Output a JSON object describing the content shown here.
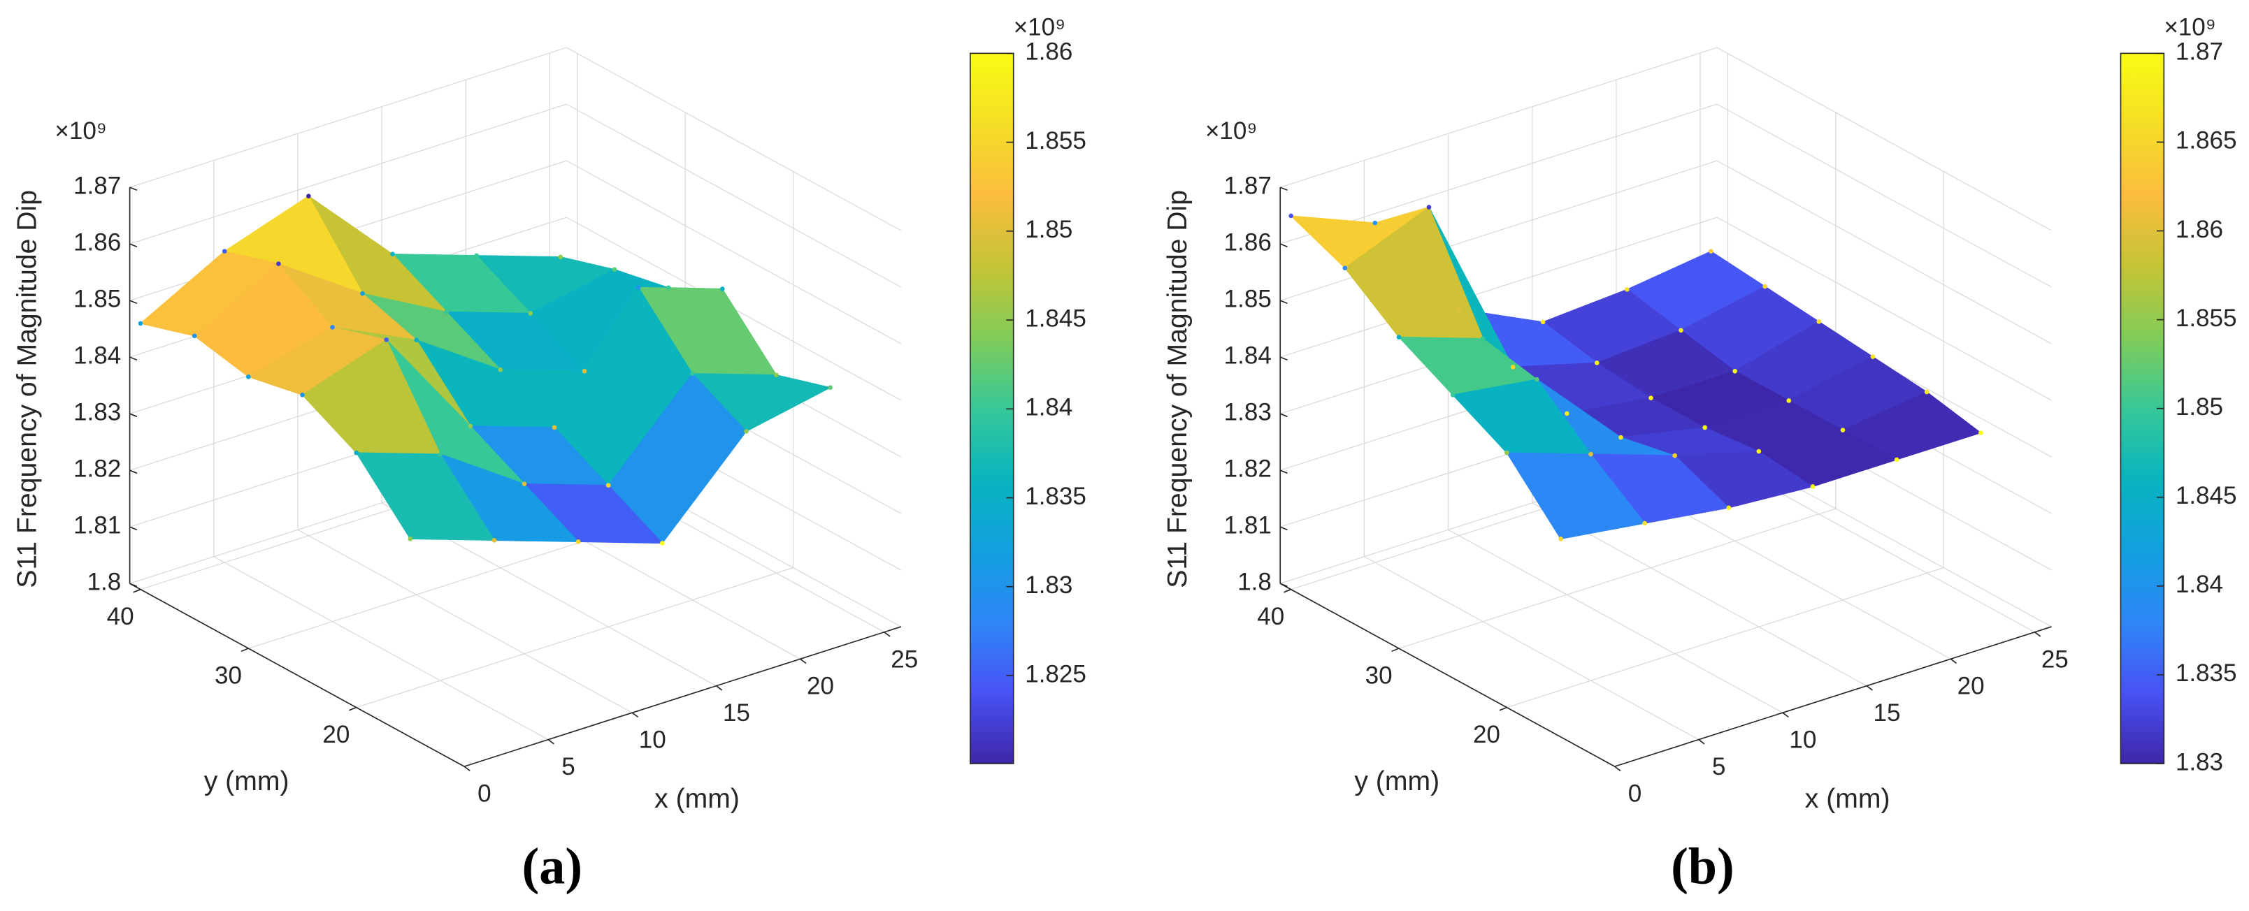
{
  "chart_data": [
    {
      "type": "surface",
      "panel_label": "(a)",
      "xlabel": "x (mm)",
      "ylabel": "y (mm)",
      "zlabel": "S11 Frequency of Magnitude Dip",
      "z_exponent": "×10⁹",
      "colormap": "parula",
      "grid": true,
      "x": [
        0,
        5,
        10,
        15,
        20,
        25
      ],
      "y": [
        15,
        20,
        25,
        30,
        35,
        40
      ],
      "z": [
        [
          1835000000,
          1830000000,
          1825000000,
          1820000000,
          1835000000,
          1838000000
        ],
        [
          1845000000,
          1840000000,
          1830000000,
          1825000000,
          1840000000,
          1835000000
        ],
        [
          1850000000,
          1855000000,
          1835000000,
          1830000000,
          1850000000,
          1845000000
        ],
        [
          1848000000,
          1852000000,
          1845000000,
          1835000000,
          1830000000,
          1840000000
        ],
        [
          1850000000,
          1858000000,
          1848000000,
          1840000000,
          1835000000,
          1838000000
        ],
        [
          1847000000,
          1855000000,
          1860000000,
          1845000000,
          1840000000,
          1835000000
        ]
      ],
      "xlim": [
        0,
        26
      ],
      "ylim": [
        10,
        41
      ],
      "zlim": [
        1800000000,
        1870000000
      ],
      "xticks": [
        0,
        5,
        10,
        15,
        20,
        25
      ],
      "yticks": [
        20,
        30,
        40
      ],
      "zticks": [
        {
          "value": 1800000000,
          "label": "1.8"
        },
        {
          "value": 1810000000,
          "label": "1.81"
        },
        {
          "value": 1820000000,
          "label": "1.82"
        },
        {
          "value": 1830000000,
          "label": "1.83"
        },
        {
          "value": 1840000000,
          "label": "1.84"
        },
        {
          "value": 1850000000,
          "label": "1.85"
        },
        {
          "value": 1860000000,
          "label": "1.86"
        },
        {
          "value": 1870000000,
          "label": "1.87"
        }
      ],
      "colorbar": {
        "lim": [
          1820050000,
          1860000000
        ],
        "exponent": "×10⁹",
        "ticks": [
          {
            "value": 1825000000,
            "label": "1.825"
          },
          {
            "value": 1830000000,
            "label": "1.83"
          },
          {
            "value": 1835000000,
            "label": "1.835"
          },
          {
            "value": 1840000000,
            "label": "1.84"
          },
          {
            "value": 1845000000,
            "label": "1.845"
          },
          {
            "value": 1850000000,
            "label": "1.85"
          },
          {
            "value": 1855000000,
            "label": "1.855"
          },
          {
            "value": 1860000000,
            "label": "1.86"
          }
        ]
      }
    },
    {
      "type": "surface",
      "panel_label": "(b)",
      "xlabel": "x (mm)",
      "ylabel": "y (mm)",
      "zlabel": "S11 Frequency of Magnitude Dip",
      "z_exponent": "×10⁹",
      "colormap": "parula",
      "grid": true,
      "x": [
        0,
        5,
        10,
        15,
        20,
        25
      ],
      "y": [
        15,
        20,
        25,
        30,
        35,
        40
      ],
      "z": [
        [
          1835000000,
          1833000000,
          1831000000,
          1830000000,
          1830000000,
          1830000000
        ],
        [
          1845000000,
          1840000000,
          1835000000,
          1831000000,
          1830000000,
          1832000000
        ],
        [
          1850000000,
          1848000000,
          1833000000,
          1830000000,
          1830000000,
          1833000000
        ],
        [
          1855000000,
          1850000000,
          1832000000,
          1830000000,
          1830000000,
          1834000000
        ],
        [
          1862000000,
          1868000000,
          1835000000,
          1831000000,
          1832000000,
          1835000000
        ],
        [
          1866000000,
          1860000000,
          1840000000,
          1833000000,
          1834000000,
          1836000000
        ]
      ],
      "xlim": [
        0,
        26
      ],
      "ylim": [
        10,
        41
      ],
      "zlim": [
        1800000000,
        1870000000
      ],
      "xticks": [
        0,
        5,
        10,
        15,
        20,
        25
      ],
      "yticks": [
        20,
        30,
        40
      ],
      "zticks": [
        {
          "value": 1800000000,
          "label": "1.8"
        },
        {
          "value": 1810000000,
          "label": "1.81"
        },
        {
          "value": 1820000000,
          "label": "1.82"
        },
        {
          "value": 1830000000,
          "label": "1.83"
        },
        {
          "value": 1840000000,
          "label": "1.84"
        },
        {
          "value": 1850000000,
          "label": "1.85"
        },
        {
          "value": 1860000000,
          "label": "1.86"
        },
        {
          "value": 1870000000,
          "label": "1.87"
        }
      ],
      "colorbar": {
        "lim": [
          1830000000,
          1870000000
        ],
        "exponent": "×10⁹",
        "ticks": [
          {
            "value": 1830000000,
            "label": "1.83"
          },
          {
            "value": 1835000000,
            "label": "1.835"
          },
          {
            "value": 1840000000,
            "label": "1.84"
          },
          {
            "value": 1845000000,
            "label": "1.845"
          },
          {
            "value": 1850000000,
            "label": "1.85"
          },
          {
            "value": 1855000000,
            "label": "1.855"
          },
          {
            "value": 1860000000,
            "label": "1.86"
          },
          {
            "value": 1865000000,
            "label": "1.865"
          },
          {
            "value": 1870000000,
            "label": "1.87"
          }
        ]
      }
    }
  ]
}
